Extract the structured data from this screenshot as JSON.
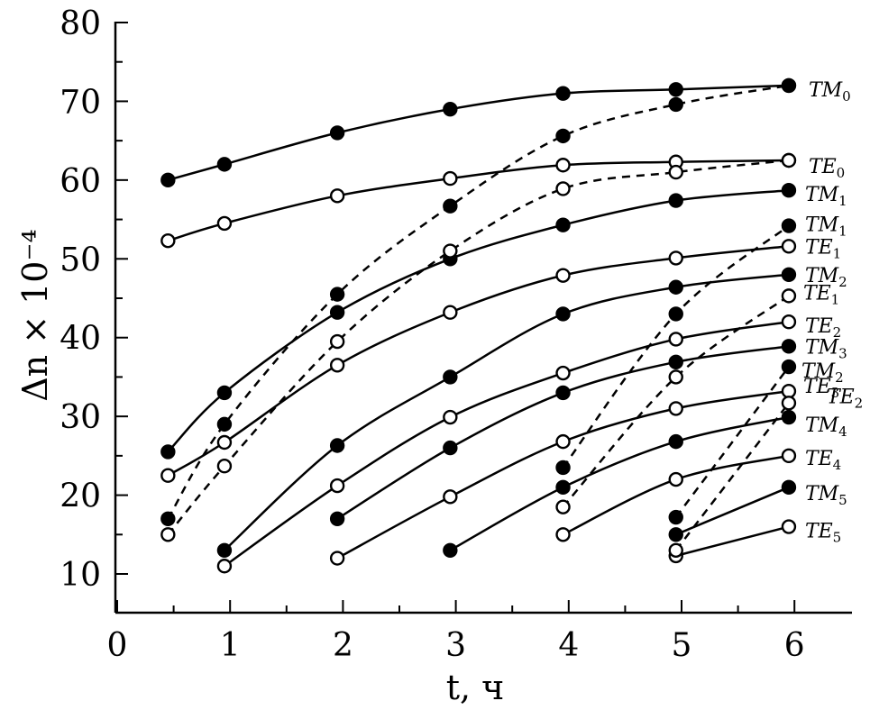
{
  "chart_data": {
    "type": "line",
    "xlabel": "t, ч",
    "ylabel": "Δn × 10⁻⁴",
    "xlim": [
      0,
      6.5
    ],
    "ylim": [
      5,
      80
    ],
    "xticks": [
      0,
      1,
      2,
      3,
      4,
      5,
      6
    ],
    "yticks": [
      10,
      20,
      30,
      40,
      50,
      60,
      70,
      80
    ],
    "grid": false,
    "legend": "inline labels at right end of curves",
    "series": [
      {
        "name": "TM0",
        "style": "solid",
        "marker": "filled",
        "x": [
          0.45,
          0.95,
          1.95,
          2.95,
          3.95,
          4.95,
          5.95
        ],
        "y": [
          60,
          62,
          66,
          69,
          71,
          71.5,
          72
        ]
      },
      {
        "name": "TE0",
        "style": "solid",
        "marker": "open",
        "x": [
          0.45,
          0.95,
          1.95,
          2.95,
          3.95,
          4.95,
          5.95
        ],
        "y": [
          52.3,
          54.5,
          58,
          60.2,
          61.9,
          62.3,
          62.5
        ]
      },
      {
        "name": "TM1",
        "style": "solid",
        "marker": "filled",
        "x": [
          0.45,
          0.95,
          1.95,
          2.95,
          3.95,
          4.95,
          5.95
        ],
        "y": [
          25.5,
          33,
          43.2,
          50,
          54.3,
          57.4,
          58.7
        ]
      },
      {
        "name": "TE1",
        "style": "solid",
        "marker": "open",
        "x": [
          0.45,
          0.95,
          1.95,
          2.95,
          3.95,
          4.95,
          5.95
        ],
        "y": [
          22.5,
          26.7,
          36.5,
          43.2,
          47.9,
          50.1,
          51.6
        ]
      },
      {
        "name": "TM2",
        "style": "solid",
        "marker": "filled",
        "x": [
          0.95,
          1.95,
          2.95,
          3.95,
          4.95,
          5.95
        ],
        "y": [
          13,
          26.3,
          35,
          43,
          46.4,
          48
        ]
      },
      {
        "name": "TE2",
        "style": "solid",
        "marker": "open",
        "x": [
          0.95,
          1.95,
          2.95,
          3.95,
          4.95,
          5.95
        ],
        "y": [
          11,
          21.2,
          29.9,
          35.5,
          39.8,
          42
        ]
      },
      {
        "name": "TM3",
        "style": "solid",
        "marker": "filled",
        "x": [
          1.95,
          2.95,
          3.95,
          4.95,
          5.95
        ],
        "y": [
          17,
          26,
          33,
          36.9,
          38.9
        ]
      },
      {
        "name": "TE3",
        "style": "solid",
        "marker": "open",
        "x": [
          1.95,
          2.95,
          3.95,
          4.95,
          5.95
        ],
        "y": [
          12,
          19.8,
          26.8,
          31,
          33.2
        ]
      },
      {
        "name": "TM4",
        "style": "solid",
        "marker": "filled",
        "x": [
          2.95,
          3.95,
          4.95,
          5.95
        ],
        "y": [
          13,
          21,
          26.8,
          29.9
        ]
      },
      {
        "name": "TE4",
        "style": "solid",
        "marker": "open",
        "x": [
          3.95,
          4.95,
          5.95
        ],
        "y": [
          15,
          22,
          25
        ]
      },
      {
        "name": "TM5",
        "style": "solid",
        "marker": "filled",
        "x": [
          4.95,
          5.95
        ],
        "y": [
          15,
          21
        ]
      },
      {
        "name": "TE5",
        "style": "solid",
        "marker": "open",
        "x": [
          4.95,
          5.95
        ],
        "y": [
          12.3,
          16
        ]
      },
      {
        "name": "TM0",
        "style": "dashed",
        "marker": "filled",
        "x": [
          0.45,
          0.95,
          1.95,
          2.95,
          3.95,
          4.95,
          5.95
        ],
        "y": [
          17,
          29,
          45.5,
          56.7,
          65.6,
          69.6,
          72
        ]
      },
      {
        "name": "TE0",
        "style": "dashed",
        "marker": "open",
        "x": [
          0.45,
          0.95,
          1.95,
          2.95,
          3.95,
          4.95,
          5.95
        ],
        "y": [
          15,
          23.7,
          39.5,
          51,
          58.9,
          61,
          62.5
        ]
      },
      {
        "name": "TM1",
        "style": "dashed",
        "marker": "filled",
        "x": [
          3.95,
          4.95,
          5.95
        ],
        "y": [
          23.5,
          43,
          54.2
        ]
      },
      {
        "name": "TE1",
        "style": "dashed",
        "marker": "open",
        "x": [
          3.95,
          4.95,
          5.95
        ],
        "y": [
          18.5,
          35,
          45.3
        ]
      },
      {
        "name": "TM2",
        "style": "dashed",
        "marker": "filled",
        "x": [
          4.95,
          5.95
        ],
        "y": [
          17.2,
          36.3
        ]
      },
      {
        "name": "TE2",
        "style": "dashed",
        "marker": "open",
        "x": [
          4.95,
          5.95
        ],
        "y": [
          13,
          31.7
        ]
      }
    ],
    "labels": [
      {
        "main": "TM",
        "sub": "0",
        "series": 0
      },
      {
        "main": "TE",
        "sub": "0",
        "series": 1
      },
      {
        "main": "TM",
        "sub": "1",
        "series": 2
      },
      {
        "main": "TM",
        "sub": "1",
        "series": 14
      },
      {
        "main": "TE",
        "sub": "1",
        "series": 3
      },
      {
        "main": "TM",
        "sub": "2",
        "series": 4
      },
      {
        "main": "TE",
        "sub": "1",
        "series": 15
      },
      {
        "main": "TE",
        "sub": "2",
        "series": 5
      },
      {
        "main": "TM",
        "sub": "3",
        "series": 6
      },
      {
        "main": "TM",
        "sub": "2",
        "series": 16
      },
      {
        "main": "TE",
        "sub": "3",
        "series": 7
      },
      {
        "main": "TE",
        "sub": "2",
        "series": 17
      },
      {
        "main": "TM",
        "sub": "4",
        "series": 8
      },
      {
        "main": "TE",
        "sub": "4",
        "series": 9
      },
      {
        "main": "TM",
        "sub": "5",
        "series": 10
      },
      {
        "main": "TE",
        "sub": "5",
        "series": 11
      }
    ]
  }
}
